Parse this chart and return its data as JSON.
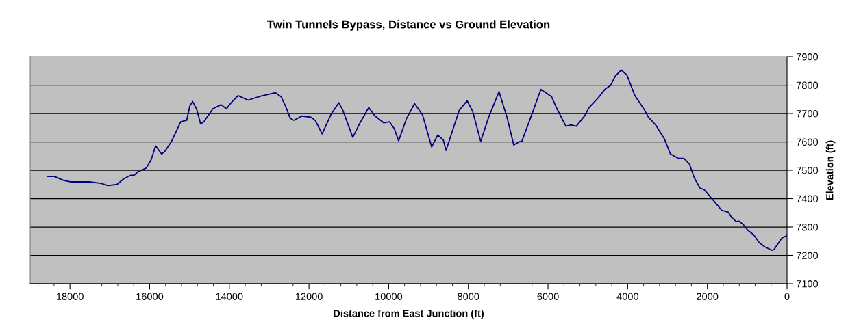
{
  "chart_data": {
    "type": "line",
    "title": "Twin Tunnels Bypass, Distance vs Ground Elevation",
    "xlabel": "Distance from East Junction (ft)",
    "ylabel": "Elevation (ft)",
    "x": [
      18570,
      18390,
      18160,
      17970,
      17510,
      17220,
      17050,
      16820,
      16650,
      16480,
      16390,
      16300,
      16080,
      15960,
      15850,
      15700,
      15620,
      15450,
      15220,
      15070,
      14990,
      14920,
      14820,
      14720,
      14640,
      14410,
      14210,
      14070,
      13960,
      13780,
      13530,
      13210,
      12840,
      12700,
      12580,
      12470,
      12380,
      12180,
      11950,
      11840,
      11670,
      11440,
      11250,
      11150,
      10900,
      10720,
      10500,
      10350,
      10120,
      9980,
      9860,
      9750,
      9550,
      9350,
      9150,
      8920,
      8770,
      8630,
      8560,
      8230,
      8030,
      7890,
      7690,
      7490,
      7230,
      7030,
      6860,
      6710,
      6660,
      6400,
      6180,
      6050,
      5910,
      5770,
      5550,
      5420,
      5290,
      5080,
      4970,
      4740,
      4560,
      4430,
      4310,
      4160,
      4020,
      3820,
      3590,
      3480,
      3300,
      3080,
      2930,
      2730,
      2590,
      2450,
      2330,
      2190,
      2070,
      1900,
      1640,
      1470,
      1390,
      1270,
      1210,
      1100,
      990,
      840,
      700,
      560,
      380,
      330,
      130,
      10
    ],
    "series": [
      {
        "color": "#000080",
        "values": [
          7478,
          7478,
          7464,
          7459,
          7459,
          7454,
          7446,
          7450,
          7470,
          7482,
          7482,
          7494,
          7508,
          7538,
          7586,
          7557,
          7566,
          7602,
          7671,
          7676,
          7727,
          7742,
          7715,
          7663,
          7671,
          7717,
          7731,
          7717,
          7737,
          7763,
          7747,
          7761,
          7773,
          7759,
          7723,
          7683,
          7676,
          7691,
          7687,
          7675,
          7628,
          7699,
          7738,
          7711,
          7616,
          7667,
          7721,
          7692,
          7667,
          7671,
          7647,
          7604,
          7683,
          7735,
          7695,
          7582,
          7624,
          7607,
          7570,
          7711,
          7745,
          7707,
          7602,
          7687,
          7777,
          7687,
          7589,
          7601,
          7601,
          7699,
          7785,
          7773,
          7759,
          7715,
          7655,
          7660,
          7655,
          7692,
          7721,
          7755,
          7787,
          7799,
          7832,
          7853,
          7836,
          7763,
          7715,
          7687,
          7660,
          7611,
          7558,
          7542,
          7542,
          7522,
          7474,
          7438,
          7430,
          7402,
          7359,
          7352,
          7333,
          7319,
          7321,
          7309,
          7289,
          7273,
          7245,
          7230,
          7218,
          7220,
          7261,
          7269
        ]
      }
    ],
    "xlim": [
      19000,
      0
    ],
    "xticks": [
      {
        "value": 18800,
        "label": null
      },
      {
        "value": 18400,
        "label": null
      },
      18000,
      {
        "value": 17600,
        "label": null
      },
      {
        "value": 17200,
        "label": null
      },
      {
        "value": 16800,
        "label": null
      },
      {
        "value": 16400,
        "label": null
      },
      16000,
      {
        "value": 15600,
        "label": null
      },
      {
        "value": 15200,
        "label": null
      },
      {
        "value": 14800,
        "label": null
      },
      {
        "value": 14400,
        "label": null
      },
      14000,
      {
        "value": 13600,
        "label": null
      },
      {
        "value": 13200,
        "label": null
      },
      {
        "value": 12800,
        "label": null
      },
      {
        "value": 12400,
        "label": null
      },
      12000,
      {
        "value": 11600,
        "label": null
      },
      {
        "value": 11200,
        "label": null
      },
      {
        "value": 10800,
        "label": null
      },
      {
        "value": 10400,
        "label": null
      },
      10000,
      {
        "value": 9600,
        "label": null
      },
      {
        "value": 9200,
        "label": null
      },
      {
        "value": 8800,
        "label": null
      },
      {
        "value": 8400,
        "label": null
      },
      8000,
      {
        "value": 7600,
        "label": null
      },
      {
        "value": 7200,
        "label": null
      },
      {
        "value": 6800,
        "label": null
      },
      {
        "value": 6400,
        "label": null
      },
      6000,
      {
        "value": 5600,
        "label": null
      },
      {
        "value": 5200,
        "label": null
      },
      {
        "value": 4800,
        "label": null
      },
      {
        "value": 4400,
        "label": null
      },
      4000,
      {
        "value": 3600,
        "label": null
      },
      {
        "value": 3200,
        "label": null
      },
      {
        "value": 2800,
        "label": null
      },
      {
        "value": 2400,
        "label": null
      },
      2000,
      {
        "value": 1600,
        "label": null
      },
      {
        "value": 1200,
        "label": null
      },
      {
        "value": 800,
        "label": null
      },
      {
        "value": 400,
        "label": null
      },
      0
    ],
    "ylim": [
      7100,
      7900
    ],
    "yticks": [
      7100,
      7200,
      7300,
      7400,
      7500,
      7600,
      7700,
      7800,
      7900
    ],
    "grid": "y",
    "marker": "none",
    "line_style": "solid"
  }
}
